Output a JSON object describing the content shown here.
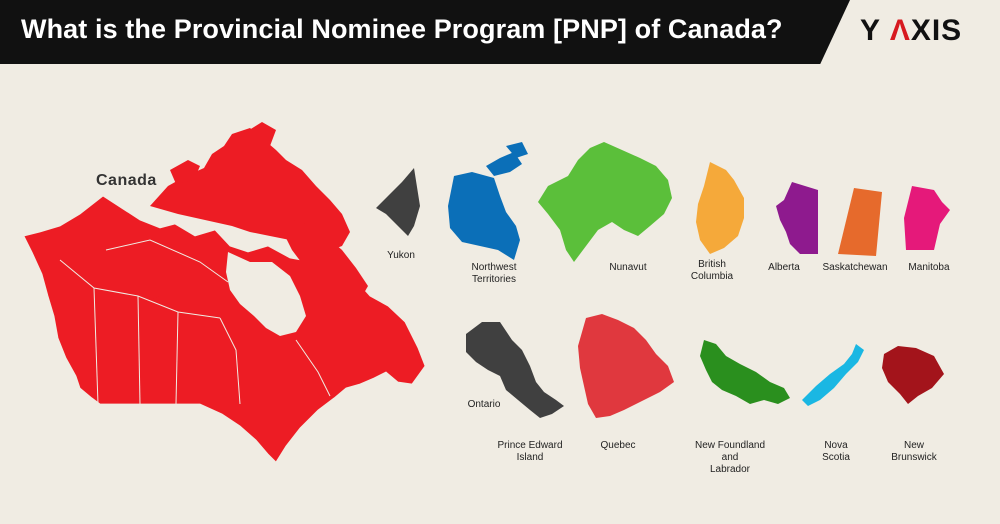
{
  "header": {
    "title": "What is the Provincial Nominee Program [PNP] of Canada?",
    "logo_left": "Y ",
    "logo_accent": "Λ",
    "logo_right": "XIS"
  },
  "map": {
    "label": "Canada",
    "color": "#ed1c24"
  },
  "regions": [
    {
      "key": "yukon",
      "label": "Yukon",
      "color": "#404040"
    },
    {
      "key": "nwt",
      "label": "Northwest\nTerritories",
      "color": "#0b6fb8"
    },
    {
      "key": "nunavut",
      "label": "Nunavut",
      "color": "#5bbf3a"
    },
    {
      "key": "bc",
      "label": "British\nColumbia",
      "color": "#f5a93a"
    },
    {
      "key": "alberta",
      "label": "Alberta",
      "color": "#8e1a8e"
    },
    {
      "key": "sask",
      "label": "Saskatchewan",
      "color": "#e66a2c"
    },
    {
      "key": "manitoba",
      "label": "Manitoba",
      "color": "#e5197a"
    },
    {
      "key": "ontario",
      "label": "Ontario",
      "color": "#404040"
    },
    {
      "key": "pei",
      "label": "Prince Edward\nIsland",
      "color": "#404040"
    },
    {
      "key": "quebec",
      "label": "Quebec",
      "color": "#e0383e"
    },
    {
      "key": "nfl",
      "label": "New Foundland\nand\nLabrador",
      "color": "#2a8f1e"
    },
    {
      "key": "ns",
      "label": "Nova\nScotia",
      "color": "#1ab7e3"
    },
    {
      "key": "nb",
      "label": "New\nBrunswick",
      "color": "#a3141b"
    }
  ]
}
